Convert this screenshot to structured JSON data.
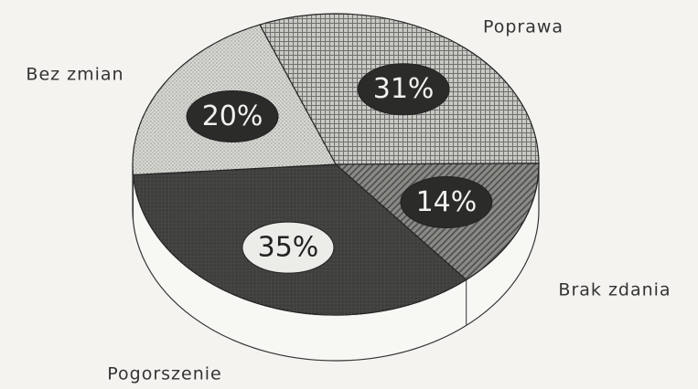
{
  "chart_data": {
    "type": "pie",
    "categories": [
      "Poprawa",
      "Brak zdania",
      "Pogorszenie",
      "Bez zmian"
    ],
    "values": [
      31,
      14,
      35,
      20
    ],
    "value_labels": [
      "31%",
      "14%",
      "35%",
      "20%"
    ],
    "colors": [
      "#c9c9c4",
      "#8a8a86",
      "#3e3e3c",
      "#d8d8d3"
    ]
  }
}
